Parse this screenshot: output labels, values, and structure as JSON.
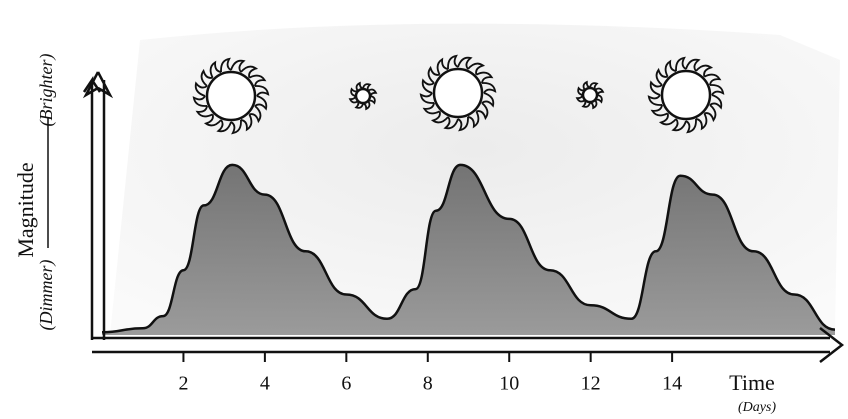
{
  "chart_data": {
    "type": "area",
    "y_label": "Magnitude",
    "y_label_low": "(Dimmer)",
    "y_label_high": "(Brighter)",
    "x_label": "Time",
    "x_label_unit": "(Days)",
    "x": [
      0,
      1,
      1.5,
      2,
      2.5,
      3.2,
      4,
      5,
      6,
      7,
      7.7,
      8.2,
      8.8,
      10,
      11,
      12,
      13,
      13.6,
      14.2,
      15,
      16,
      17,
      18
    ],
    "series": [
      {
        "color": "#6f6f6f",
        "values": [
          0.1,
          0.25,
          0.7,
          2.4,
          4.8,
          6.3,
          5.2,
          3.1,
          1.5,
          0.6,
          1.7,
          4.6,
          6.3,
          4.3,
          2.4,
          1.1,
          0.6,
          3.1,
          5.9,
          5.2,
          3.1,
          1.5,
          0.2
        ]
      }
    ],
    "xlim": [
      0,
      18
    ],
    "ylim": [
      0,
      10
    ],
    "xticks": [
      2,
      4,
      6,
      8,
      10,
      12,
      14
    ]
  }
}
